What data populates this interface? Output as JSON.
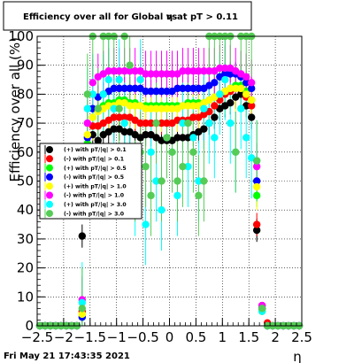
{
  "window": {
    "title_prefix": "Efficiency over all for Global vs",
    "title_symbol": "η",
    "title_suffix": "at pT > 0.11",
    "timestamp": "Fri May 21 17:43:35 2021"
  },
  "chart_data": {
    "type": "scatter",
    "xlabel": "η",
    "ylabel": "Efficiency over all (%)",
    "xlim": [
      -2.5,
      2.5
    ],
    "ylim": [
      0,
      100
    ],
    "x_ticks": [
      "−2.5",
      "−2",
      "−1.5",
      "−1",
      "−0.5",
      "0",
      "0.5",
      "1",
      "1.5",
      "2",
      "2.5"
    ],
    "y_ticks": [
      "0",
      "10",
      "20",
      "30",
      "40",
      "50",
      "60",
      "70",
      "80",
      "90",
      "100"
    ],
    "grid": true,
    "legend_position": "middle-left",
    "x": [
      -2.45,
      -2.35,
      -2.25,
      -2.15,
      -2.05,
      -1.95,
      -1.85,
      -1.75,
      -1.65,
      -1.55,
      -1.45,
      -1.35,
      -1.25,
      -1.15,
      -1.05,
      -0.95,
      -0.85,
      -0.75,
      -0.65,
      -0.55,
      -0.45,
      -0.35,
      -0.25,
      -0.15,
      -0.05,
      0.05,
      0.15,
      0.25,
      0.35,
      0.45,
      0.55,
      0.65,
      0.75,
      0.85,
      0.95,
      1.05,
      1.15,
      1.25,
      1.35,
      1.45,
      1.55,
      1.65,
      1.75,
      1.85,
      1.95,
      2.05,
      2.15,
      2.25,
      2.35,
      2.45
    ],
    "series": [
      {
        "name": "(+) with pT/|q| > 0.1",
        "color": "#000000",
        "values": [
          0,
          0,
          0,
          0,
          0,
          0,
          0,
          0,
          31,
          60,
          66,
          64,
          66,
          67,
          68,
          68,
          67,
          67,
          66,
          65,
          66,
          66,
          65,
          64,
          64,
          64,
          65,
          65,
          65,
          66,
          67,
          68,
          70,
          72,
          75,
          76,
          77,
          79,
          80,
          76,
          72,
          33,
          6,
          0,
          0,
          0,
          0,
          0,
          0,
          0
        ]
      },
      {
        "name": "(-) with pT/|q| > 0.1",
        "color": "#ff0000",
        "values": [
          0,
          0,
          0,
          0,
          0,
          0,
          0,
          0,
          5,
          62,
          69,
          69,
          70,
          71,
          72,
          72,
          72,
          72,
          71,
          70,
          70,
          70,
          70,
          70,
          70,
          70,
          71,
          71,
          71,
          72,
          72,
          73,
          74,
          76,
          78,
          80,
          81,
          82,
          82,
          79,
          76,
          35,
          7,
          1,
          0,
          0,
          0,
          0,
          0,
          0
        ]
      },
      {
        "name": "(+) with pT/|q| > 0.5",
        "color": "#00ff00",
        "values": [
          0,
          0,
          0,
          0,
          0,
          0,
          0,
          0,
          3,
          63,
          72,
          75,
          76,
          77,
          77,
          78,
          78,
          77,
          77,
          76,
          76,
          76,
          76,
          76,
          76,
          76,
          76,
          76,
          77,
          77,
          77,
          77,
          78,
          79,
          80,
          81,
          82,
          83,
          83,
          81,
          78,
          45,
          5,
          0,
          0,
          0,
          0,
          0,
          0,
          0
        ]
      },
      {
        "name": "(-) with pT/|q| > 0.5",
        "color": "#0000ff",
        "values": [
          0,
          0,
          0,
          0,
          0,
          0,
          0,
          0,
          3,
          65,
          75,
          79,
          80,
          81,
          82,
          82,
          82,
          82,
          82,
          82,
          81,
          81,
          81,
          81,
          81,
          81,
          82,
          82,
          82,
          82,
          82,
          82,
          83,
          84,
          86,
          87,
          87,
          87,
          86,
          84,
          82,
          50,
          6,
          0,
          0,
          0,
          0,
          0,
          0,
          0
        ]
      },
      {
        "name": "(+) with pT/|q| > 1.0",
        "color": "#ffff00",
        "values": [
          0,
          0,
          0,
          0,
          0,
          0,
          0,
          0,
          4,
          66,
          72,
          74,
          75,
          76,
          76,
          77,
          77,
          76,
          76,
          76,
          75,
          75,
          75,
          75,
          75,
          75,
          75,
          76,
          76,
          76,
          76,
          77,
          78,
          79,
          80,
          81,
          82,
          82,
          82,
          80,
          78,
          48,
          5,
          0,
          0,
          0,
          0,
          0,
          0,
          0
        ]
      },
      {
        "name": "(-) with pT/|q| > 1.0",
        "color": "#ff00ff",
        "values": [
          0,
          0,
          0,
          0,
          0,
          0,
          0,
          0,
          9,
          70,
          84,
          86,
          87,
          88,
          88,
          88,
          88,
          88,
          88,
          88,
          87,
          87,
          87,
          87,
          87,
          87,
          87,
          88,
          88,
          88,
          88,
          88,
          88,
          88,
          89,
          89,
          89,
          88,
          87,
          86,
          84,
          55,
          7,
          0,
          0,
          0,
          0,
          0,
          0,
          0
        ]
      },
      {
        "name": "(+) with pT/|q| > 3.0",
        "color": "#00ffff",
        "values": [
          0,
          0,
          0,
          0,
          0,
          0,
          0,
          0,
          8,
          75,
          80,
          60,
          80,
          85,
          75,
          85,
          70,
          55,
          45,
          85,
          35,
          60,
          50,
          40,
          65,
          60,
          45,
          70,
          55,
          65,
          50,
          75,
          70,
          65,
          80,
          85,
          70,
          60,
          75,
          65,
          58,
          57,
          5,
          0,
          0,
          0,
          0,
          0,
          0,
          0
        ]
      },
      {
        "name": "(-) with pT/|q| > 3.0",
        "color": "#55cc55",
        "values": [
          0,
          0,
          0,
          0,
          0,
          0,
          0,
          0,
          6,
          80,
          100,
          75,
          100,
          100,
          100,
          75,
          100,
          90,
          50,
          60,
          55,
          45,
          70,
          50,
          65,
          60,
          50,
          55,
          70,
          60,
          45,
          50,
          100,
          100,
          100,
          100,
          100,
          60,
          100,
          100,
          100,
          57,
          6,
          0,
          0,
          0,
          0,
          0,
          0,
          0
        ]
      }
    ]
  }
}
